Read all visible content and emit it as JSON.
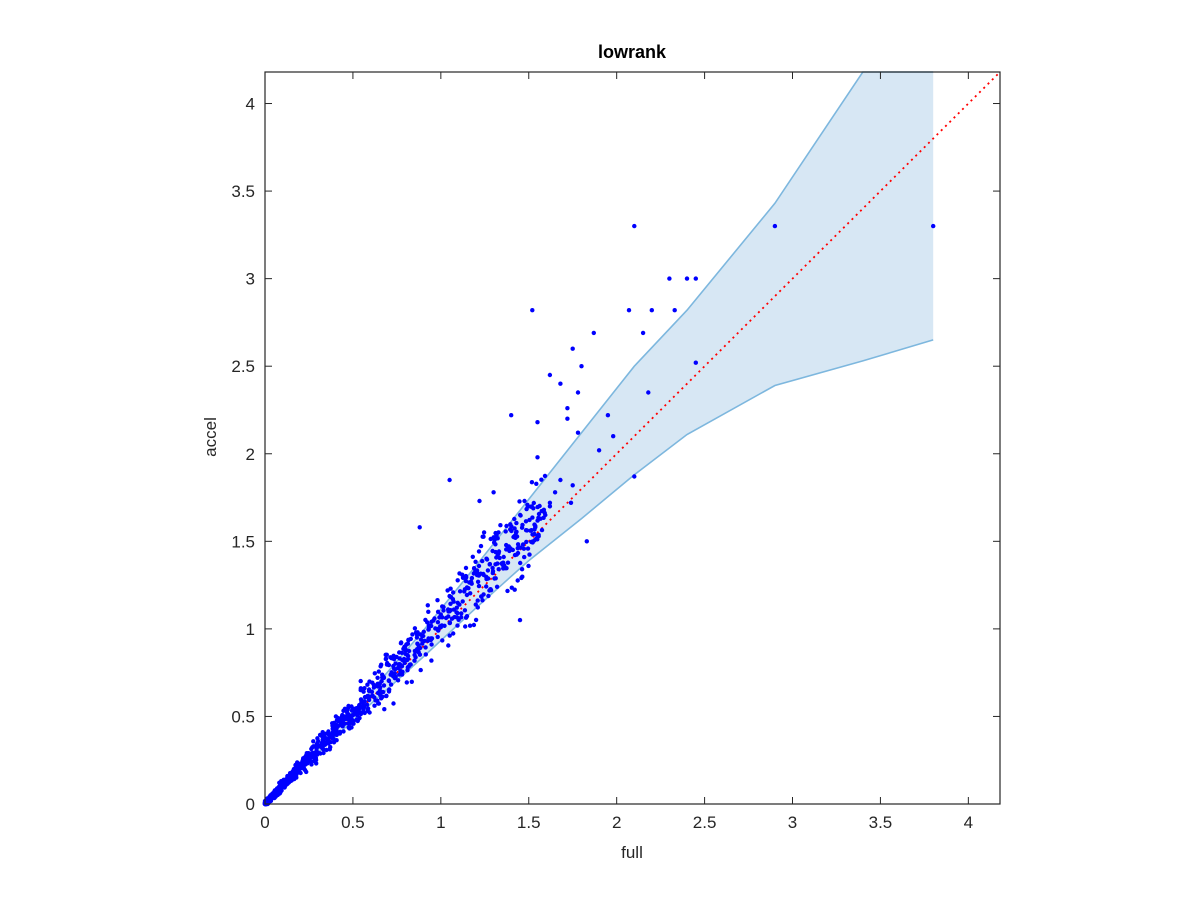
{
  "chart_data": {
    "type": "scatter",
    "title": "lowrank",
    "xlabel": "full",
    "ylabel": "accel",
    "xlim": [
      0,
      4.18
    ],
    "ylim": [
      0,
      4.18
    ],
    "xticks": [
      0,
      0.5,
      1,
      1.5,
      2,
      2.5,
      3,
      3.5,
      4
    ],
    "yticks": [
      0,
      0.5,
      1,
      1.5,
      2,
      2.5,
      3,
      3.5,
      4
    ],
    "xtick_labels": [
      "0",
      "0.5",
      "1",
      "1.5",
      "2",
      "2.5",
      "3",
      "3.5",
      "4"
    ],
    "ytick_labels": [
      "0",
      "0.5",
      "1",
      "1.5",
      "2",
      "2.5",
      "3",
      "3.5",
      "4"
    ],
    "grid": false,
    "colors": {
      "points": "#0000ff",
      "band_fill": "#d7e7f4",
      "band_edge": "#7db7de",
      "reference_line": "#ff0000",
      "axes": "#262626"
    },
    "reference_line": {
      "style": "dotted",
      "x": [
        0,
        4.18
      ],
      "y": [
        0,
        4.18
      ]
    },
    "band": {
      "x": [
        0.3,
        0.6,
        0.9,
        1.2,
        1.5,
        1.8,
        2.1,
        2.4,
        2.9,
        3.4,
        3.8
      ],
      "upper": [
        0.31,
        0.64,
        0.99,
        1.36,
        1.74,
        2.12,
        2.5,
        2.82,
        3.43,
        4.18,
        4.18
      ],
      "lower": [
        0.29,
        0.57,
        0.84,
        1.12,
        1.39,
        1.63,
        1.88,
        2.11,
        2.39,
        2.53,
        2.65
      ]
    },
    "scatter_notable": {
      "x": [
        2.1,
        2.9,
        3.8,
        1.52,
        2.07,
        2.3,
        2.4,
        2.45,
        2.2,
        2.33,
        1.87,
        2.15,
        1.75,
        1.8,
        2.18,
        2.45,
        1.62,
        1.68,
        1.72,
        1.4,
        1.55,
        1.95,
        1.78,
        1.9,
        1.98,
        2.1,
        1.68,
        1.75,
        1.65,
        1.05,
        1.3,
        1.22,
        0.88,
        1.45,
        1.62,
        1.83,
        1.62,
        1.74,
        1.55,
        1.72,
        1.78
      ],
      "y": [
        3.3,
        3.3,
        3.3,
        2.82,
        2.82,
        3.0,
        3.0,
        3.0,
        2.82,
        2.82,
        2.69,
        2.69,
        2.6,
        2.5,
        2.35,
        2.52,
        2.45,
        2.4,
        2.2,
        2.22,
        2.18,
        2.22,
        2.12,
        2.02,
        2.1,
        1.87,
        1.85,
        1.82,
        1.78,
        1.85,
        1.78,
        1.73,
        1.58,
        1.05,
        1.72,
        1.5,
        1.7,
        1.72,
        1.98,
        2.26,
        2.35
      ]
    },
    "scatter_cloud": {
      "count": 900,
      "description": "dense cluster along y = x for full in [0, 1.6], spread widening with x, skewed above the diagonal"
    }
  }
}
